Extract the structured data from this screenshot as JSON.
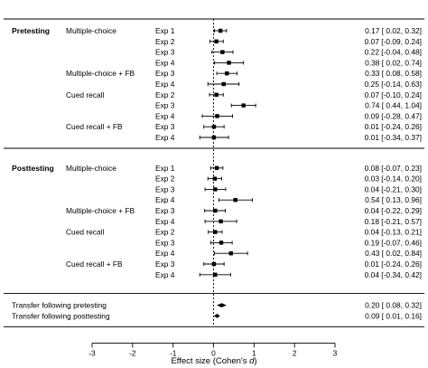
{
  "chart_data": {
    "type": "scatter",
    "title": "",
    "xlabel": "Effect size (Cohen's d)",
    "xlabel_prefix": "Effect size (Cohen's ",
    "xlabel_italic": "d",
    "xlabel_suffix": ")",
    "xlim": [
      -3,
      3
    ],
    "xticks": [
      -3,
      -2,
      -1,
      0,
      1,
      2,
      3
    ],
    "reference_line": 0,
    "sections": [
      {
        "label": "Pretesting",
        "groups": [
          {
            "label": "Multiple-choice",
            "rows": [
              {
                "study": "Exp 1",
                "est": 0.17,
                "lo": 0.02,
                "hi": 0.32,
                "text": "0.17 [ 0.02, 0.32]"
              },
              {
                "study": "Exp 2",
                "est": 0.07,
                "lo": -0.09,
                "hi": 0.24,
                "text": "0.07 [-0.09, 0.24]"
              },
              {
                "study": "Exp 3",
                "est": 0.22,
                "lo": -0.04,
                "hi": 0.48,
                "text": "0.22 [-0.04, 0.48]"
              },
              {
                "study": "Exp 4",
                "est": 0.38,
                "lo": 0.02,
                "hi": 0.74,
                "text": "0.38 [ 0.02, 0.74]"
              }
            ]
          },
          {
            "label": "Multiple-choice + FB",
            "rows": [
              {
                "study": "Exp 3",
                "est": 0.33,
                "lo": 0.08,
                "hi": 0.58,
                "text": "0.33 [ 0.08, 0.58]"
              },
              {
                "study": "Exp 4",
                "est": 0.25,
                "lo": -0.14,
                "hi": 0.63,
                "text": "0.25 [-0.14, 0.63]"
              }
            ]
          },
          {
            "label": "Cued recall",
            "rows": [
              {
                "study": "Exp 2",
                "est": 0.07,
                "lo": -0.1,
                "hi": 0.24,
                "text": "0.07 [-0.10, 0.24]"
              },
              {
                "study": "Exp 3",
                "est": 0.74,
                "lo": 0.44,
                "hi": 1.04,
                "text": "0.74 [ 0.44, 1.04]"
              },
              {
                "study": "Exp 4",
                "est": 0.09,
                "lo": -0.28,
                "hi": 0.47,
                "text": "0.09 [-0.28, 0.47]"
              }
            ]
          },
          {
            "label": "Cued recall + FB",
            "rows": [
              {
                "study": "Exp 3",
                "est": 0.01,
                "lo": -0.24,
                "hi": 0.26,
                "text": "0.01 [-0.24, 0.26]"
              },
              {
                "study": "Exp 4",
                "est": 0.01,
                "lo": -0.34,
                "hi": 0.37,
                "text": "0.01 [-0.34, 0.37]"
              }
            ]
          }
        ]
      },
      {
        "label": "Posttesting",
        "groups": [
          {
            "label": "Multiple-choice",
            "rows": [
              {
                "study": "Exp 1",
                "est": 0.08,
                "lo": -0.07,
                "hi": 0.23,
                "text": "0.08 [-0.07, 0.23]"
              },
              {
                "study": "Exp 2",
                "est": 0.03,
                "lo": -0.14,
                "hi": 0.2,
                "text": "0.03 [-0.14, 0.20]"
              },
              {
                "study": "Exp 3",
                "est": 0.04,
                "lo": -0.21,
                "hi": 0.3,
                "text": "0.04 [-0.21, 0.30]"
              },
              {
                "study": "Exp 4",
                "est": 0.54,
                "lo": 0.13,
                "hi": 0.96,
                "text": "0.54 [ 0.13, 0.96]"
              }
            ]
          },
          {
            "label": "Multiple-choice + FB",
            "rows": [
              {
                "study": "Exp 3",
                "est": 0.04,
                "lo": -0.22,
                "hi": 0.29,
                "text": "0.04 [-0.22, 0.29]"
              },
              {
                "study": "Exp 4",
                "est": 0.18,
                "lo": -0.21,
                "hi": 0.57,
                "text": "0.18 [-0.21, 0.57]"
              }
            ]
          },
          {
            "label": "Cued recall",
            "rows": [
              {
                "study": "Exp 2",
                "est": 0.04,
                "lo": -0.13,
                "hi": 0.21,
                "text": "0.04 [-0.13, 0.21]"
              },
              {
                "study": "Exp 3",
                "est": 0.19,
                "lo": -0.07,
                "hi": 0.46,
                "text": "0.19 [-0.07, 0.46]"
              },
              {
                "study": "Exp 4",
                "est": 0.43,
                "lo": 0.02,
                "hi": 0.84,
                "text": "0.43 [ 0.02, 0.84]"
              }
            ]
          },
          {
            "label": "Cued recall + FB",
            "rows": [
              {
                "study": "Exp 3",
                "est": 0.01,
                "lo": -0.24,
                "hi": 0.26,
                "text": "0.01 [-0.24, 0.26]"
              },
              {
                "study": "Exp 4",
                "est": 0.04,
                "lo": -0.34,
                "hi": 0.42,
                "text": "0.04 [-0.34, 0.42]"
              }
            ]
          }
        ]
      }
    ],
    "summary": [
      {
        "label": "Transfer following pretesting",
        "est": 0.2,
        "lo": 0.08,
        "hi": 0.32,
        "text": "0.20 [ 0.08, 0.32]"
      },
      {
        "label": "Transfer following posttesting",
        "est": 0.09,
        "lo": 0.01,
        "hi": 0.16,
        "text": "0.09 [ 0.01, 0.16]"
      }
    ]
  }
}
